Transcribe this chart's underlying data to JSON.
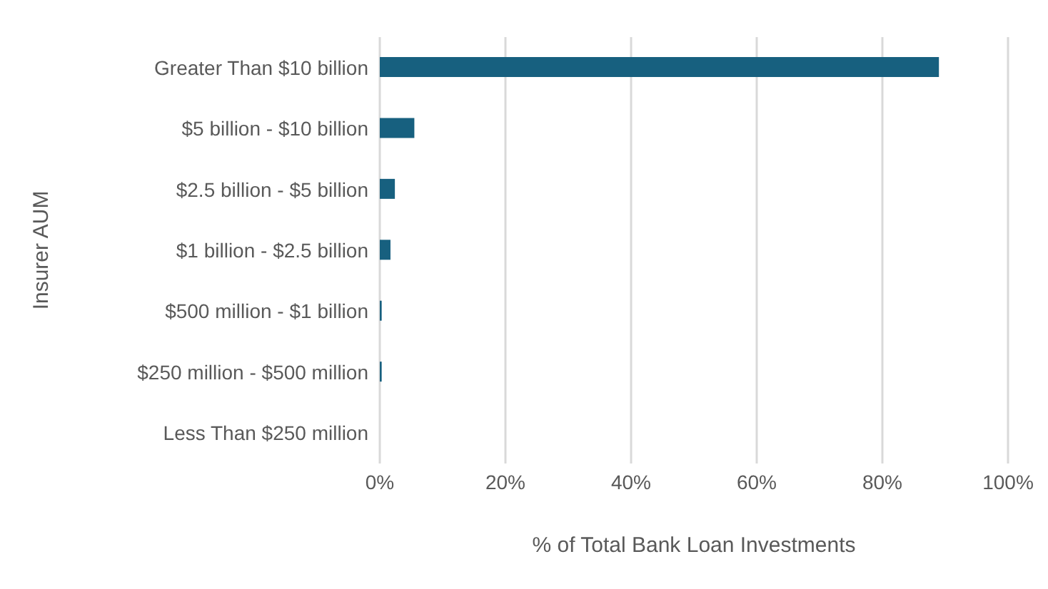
{
  "chart_data": {
    "type": "bar",
    "orientation": "horizontal",
    "xlabel": "% of Total Bank Loan Investments",
    "ylabel": "Insurer AUM",
    "categories": [
      "Greater Than $10 billion",
      "$5 billion - $10 billion",
      "$2.5 billion - $5 billion",
      "$1 billion - $2.5 billion",
      "$500 million - $1 billion",
      "$250 million - $500 million",
      "Less Than $250 million"
    ],
    "values": [
      89,
      5.5,
      2.4,
      1.7,
      0.3,
      0.3,
      0
    ],
    "color": "#17607f",
    "xlim": [
      0,
      100
    ],
    "xticks": [
      {
        "value": 0,
        "label": "0%"
      },
      {
        "value": 20,
        "label": "20%"
      },
      {
        "value": 40,
        "label": "40%"
      },
      {
        "value": 60,
        "label": "60%"
      },
      {
        "value": 80,
        "label": "80%"
      },
      {
        "value": 100,
        "label": "100%"
      }
    ],
    "grid": "x",
    "legend": false
  }
}
